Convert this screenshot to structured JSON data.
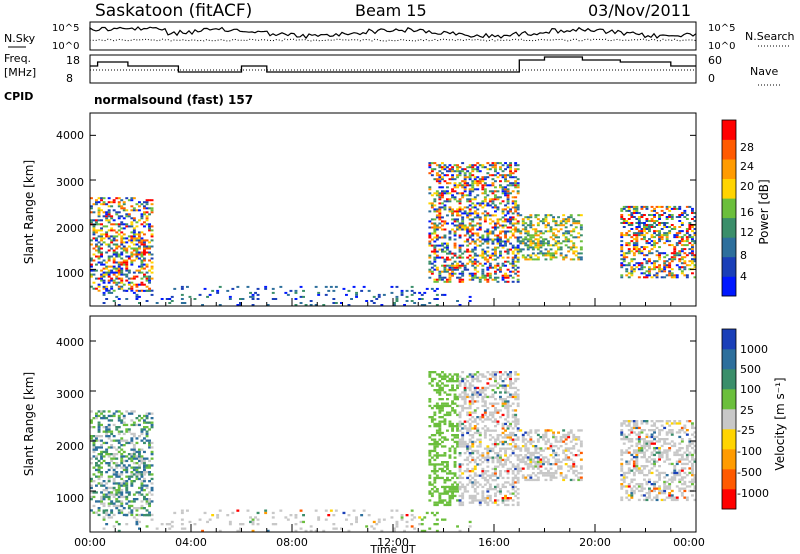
{
  "header": {
    "site": "Saskatoon (fitACF)",
    "beam": "Beam 15",
    "date": "03/Nov/2011"
  },
  "noise_panel": {
    "left_label": "N.Sky",
    "right_label": "N.Search",
    "left_ticks": [
      "10^5",
      "10^0"
    ],
    "right_ticks": [
      "10^5",
      "10^0"
    ]
  },
  "freq_panel": {
    "left_label_1": "Freq.",
    "left_label_2": "[MHz]",
    "right_label": "Nave",
    "left_ticks": [
      "18",
      "8"
    ],
    "right_ticks": [
      "60",
      "0"
    ]
  },
  "cpid": {
    "label": "CPID",
    "value": "normalsound (fast) 157"
  },
  "colors": {
    "power_scale": [
      "#0018ff",
      "#1a3fb8",
      "#2d6f9c",
      "#3a8e6a",
      "#6bbf3c",
      "#ffd400",
      "#ff9b00",
      "#ff5a00",
      "#ff0000"
    ],
    "velocity_scale": [
      "#1a3fb8",
      "#2d6f9c",
      "#3a8e6a",
      "#6bbf3c",
      "#c8c8c8",
      "#ffd400",
      "#ff9b00",
      "#ff5a00",
      "#ff0000"
    ]
  },
  "chart_data": [
    {
      "type": "heatmap",
      "name": "power",
      "ylabel": "Slant Range [km]",
      "yticks": [
        "4000",
        "3000",
        "2000",
        "1000"
      ],
      "ylim": [
        180,
        4500
      ],
      "xlim": [
        0,
        24
      ],
      "colorbar_label": "Power [dB]",
      "colorbar_ticks": [
        "28",
        "24",
        "20",
        "16",
        "12",
        "8",
        "4"
      ],
      "regions": [
        {
          "t": [
            0.0,
            2.5
          ],
          "r": [
            500,
            2600
          ],
          "level": "mixed-high"
        },
        {
          "t": [
            13.4,
            17.0
          ],
          "r": [
            700,
            3400
          ],
          "level": "mixed-high"
        },
        {
          "t": [
            17.0,
            19.5
          ],
          "r": [
            1200,
            2200
          ],
          "level": "mixed-mid"
        },
        {
          "t": [
            21.0,
            24.0
          ],
          "r": [
            800,
            2400
          ],
          "level": "mixed-high"
        },
        {
          "t": [
            0.5,
            15.0
          ],
          "r": [
            180,
            600
          ],
          "level": "low"
        }
      ]
    },
    {
      "type": "heatmap",
      "name": "velocity",
      "ylabel": "Slant Range [km]",
      "yticks": [
        "4000",
        "3000",
        "2000",
        "1000"
      ],
      "ylim": [
        180,
        4500
      ],
      "xlim": [
        0,
        24
      ],
      "colorbar_label": "Velocity [m s⁻¹]",
      "colorbar_ticks": [
        "1000",
        "500",
        "100",
        "25",
        "-25",
        "-100",
        "-500",
        "-1000"
      ],
      "xticks": [
        "00:00",
        "04:00",
        "08:00",
        "12:00",
        "16:00",
        "20:00",
        "00:00"
      ],
      "xlabel": "Time UT"
    }
  ]
}
